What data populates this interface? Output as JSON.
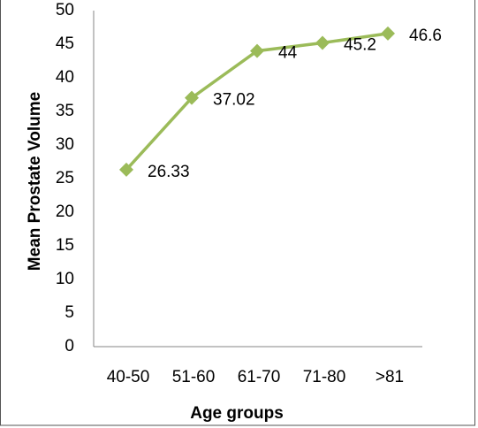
{
  "chart_data": {
    "type": "line",
    "x_label": "Age groups",
    "y_label": "Mean Prostate Volume",
    "categories": [
      "40-50",
      "51-60",
      "61-70",
      "71-80",
      ">81"
    ],
    "values": [
      26.33,
      37.02,
      44,
      45.2,
      46.6
    ],
    "color": "#9bbb59",
    "ylim": [
      0,
      50
    ],
    "yticks": [
      0,
      5,
      10,
      15,
      20,
      25,
      30,
      35,
      40,
      45,
      50
    ],
    "grid": false,
    "data_labels": true
  }
}
